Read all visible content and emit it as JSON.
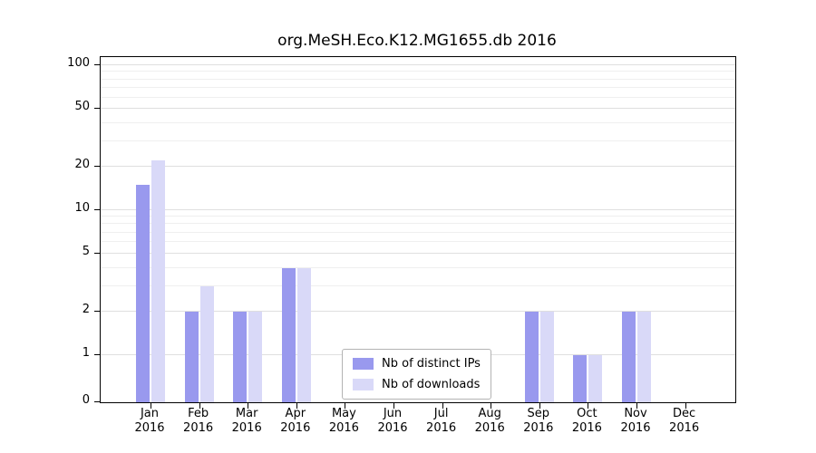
{
  "figure": {
    "title": "org.MeSH.Eco.K12.MG1655.db 2016"
  },
  "chart_data": {
    "type": "bar",
    "title": "org.MeSH.Eco.K12.MG1655.db 2016",
    "categories": [
      "Jan",
      "Feb",
      "Mar",
      "Apr",
      "May",
      "Jun",
      "Jul",
      "Aug",
      "Sep",
      "Oct",
      "Nov",
      "Dec"
    ],
    "category_sub_label": "2016",
    "series": [
      {
        "name": "Nb of distinct IPs",
        "color": "#9999ee",
        "values": [
          15,
          2,
          2,
          4,
          0,
          0,
          0,
          0,
          2,
          1,
          2,
          0
        ]
      },
      {
        "name": "Nb of downloads",
        "color": "#d9d9f8",
        "values": [
          22,
          3,
          2,
          4,
          0,
          0,
          0,
          0,
          2,
          1,
          2,
          0
        ]
      }
    ],
    "yticks": [
      0,
      1,
      2,
      5,
      10,
      20,
      50,
      100
    ],
    "minor_gridlines": [
      3,
      4,
      6,
      7,
      8,
      9,
      30,
      40,
      60,
      70,
      80,
      90
    ],
    "ylim": [
      0,
      100
    ],
    "scale": "symlog",
    "grid": true,
    "legend": {
      "position": "bottom-center",
      "entries": [
        "Nb of distinct IPs",
        "Nb of downloads"
      ]
    }
  }
}
